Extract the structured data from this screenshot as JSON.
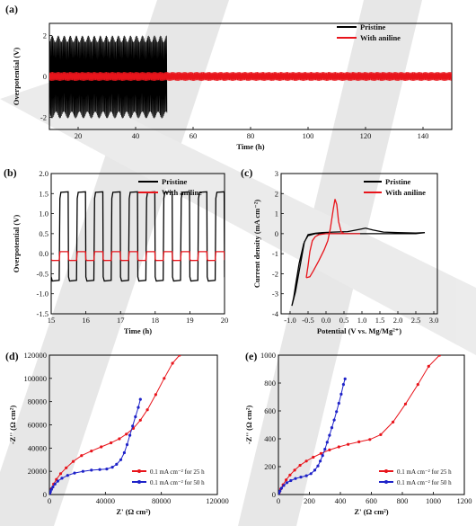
{
  "figure": {
    "panel_letters": [
      "(a)",
      "(b)",
      "(c)",
      "(d)",
      "(e)"
    ],
    "colors": {
      "pristine": "#000000",
      "with_aniline": "#e8141b",
      "eis_25h": "#e8141b",
      "eis_50h": "#1e22c8",
      "watermark": "#c8c8c8"
    }
  },
  "chart_data": [
    {
      "panel": "(a)",
      "type": "line",
      "xlabel": "Time (h)",
      "ylabel": "Overpotential (V)",
      "xlim": [
        10,
        150
      ],
      "ylim": [
        -2.6,
        2.6
      ],
      "xticks": [
        20,
        40,
        60,
        80,
        100,
        120,
        140
      ],
      "yticks": [
        -2,
        0,
        2
      ],
      "legend_position": "top-right",
      "series": [
        {
          "name": "Pristine",
          "color": "#000000",
          "cycling_end_h": 51,
          "envelope": {
            "upper": 2.0,
            "lower": -2.05
          },
          "dense_oscillation": true
        },
        {
          "name": "With aniline",
          "color": "#e8141b",
          "cycling_end_h": 150,
          "envelope": {
            "upper": 0.22,
            "lower": -0.22
          },
          "dense_oscillation": true
        }
      ]
    },
    {
      "panel": "(b)",
      "type": "line",
      "xlabel": "Time (h)",
      "ylabel": "Overpotential (V)",
      "xlim": [
        15,
        20
      ],
      "ylim": [
        -1.5,
        2.0
      ],
      "xticks": [
        15,
        16,
        17,
        18,
        19,
        20
      ],
      "yticks": [
        -1.5,
        -1.0,
        -0.5,
        0.0,
        0.5,
        1.0,
        1.5,
        2.0
      ],
      "legend_position": "top-right",
      "series": [
        {
          "name": "Pristine",
          "color": "#000000",
          "period_h": 0.5,
          "plating_V": -0.68,
          "stripping_V": 1.53
        },
        {
          "name": "With aniline",
          "color": "#e8141b",
          "period_h": 0.5,
          "plating_V": -0.17,
          "stripping_V": 0.05
        }
      ]
    },
    {
      "panel": "(c)",
      "type": "line",
      "xlabel": "Potential (V vs. Mg/Mg²⁺)",
      "ylabel": "Current density (mA cm⁻²)",
      "xlim": [
        -1.25,
        3.1
      ],
      "ylim": [
        -4,
        3
      ],
      "xticks": [
        -1.0,
        -0.5,
        0.0,
        0.5,
        1.0,
        1.5,
        2.0,
        2.5,
        3.0
      ],
      "yticks": [
        -4,
        -3,
        -2,
        -1,
        0,
        1,
        2,
        3
      ],
      "legend_position": "top-right",
      "series": [
        {
          "name": "Pristine",
          "color": "#000000",
          "x": [
            -0.95,
            -0.9,
            -0.85,
            -0.75,
            -0.62,
            -0.5,
            -0.3,
            -0.1,
            0.2,
            0.6,
            0.9,
            1.1,
            1.3,
            1.6,
            2.0,
            2.5,
            2.75,
            2.5,
            2.0,
            1.5,
            1.0,
            0.5,
            0.0,
            -0.3,
            -0.5,
            -0.6,
            -0.68,
            -0.76,
            -0.85,
            -0.95
          ],
          "y": [
            -3.6,
            -3.2,
            -2.6,
            -1.5,
            -0.5,
            -0.05,
            0.02,
            0.05,
            0.08,
            0.1,
            0.2,
            0.27,
            0.18,
            0.08,
            0.05,
            0.03,
            0.05,
            0.0,
            0.0,
            0.0,
            0.0,
            0.0,
            0.0,
            0.0,
            -0.1,
            -0.4,
            -1.2,
            -2.0,
            -2.9,
            -3.6
          ]
        },
        {
          "name": "With aniline",
          "color": "#e8141b",
          "x": [
            -0.55,
            -0.45,
            -0.35,
            -0.2,
            -0.05,
            0.05,
            0.12,
            0.2,
            0.25,
            0.3,
            0.35,
            0.42,
            0.5,
            0.62,
            0.8,
            0.95,
            0.8,
            0.5,
            0.2,
            0.0,
            -0.2,
            -0.3,
            -0.38,
            -0.45,
            -0.5,
            -0.55
          ],
          "y": [
            -2.2,
            -2.15,
            -1.85,
            -1.35,
            -0.8,
            -0.35,
            0.25,
            1.2,
            1.72,
            1.45,
            0.6,
            0.1,
            0.0,
            0.0,
            0.0,
            0.0,
            0.0,
            0.0,
            0.0,
            0.0,
            -0.05,
            -0.15,
            -0.35,
            -0.9,
            -1.6,
            -2.2
          ]
        }
      ]
    },
    {
      "panel": "(d)",
      "type": "scatter",
      "xlabel": "Z' (Ω cm²)",
      "ylabel": "-Z'' (Ω cm²)",
      "xlim": [
        0,
        120000
      ],
      "ylim": [
        0,
        120000
      ],
      "xticks": [
        0,
        40000,
        80000,
        120000
      ],
      "yticks": [
        0,
        20000,
        40000,
        60000,
        80000,
        100000,
        120000
      ],
      "legend_position": "bottom-right",
      "series": [
        {
          "name": "0.1 mA cm⁻² for 25 h",
          "color": "#e8141b",
          "x": [
            500,
            1500,
            3000,
            5000,
            8000,
            12000,
            17000,
            23000,
            30000,
            37000,
            44000,
            50000,
            55000,
            60000,
            65000,
            70000,
            76000,
            82000,
            88000,
            93000
          ],
          "y": [
            2000,
            5000,
            9000,
            13000,
            18000,
            23000,
            28500,
            33500,
            37500,
            41000,
            44500,
            48000,
            52000,
            57000,
            64000,
            73000,
            86000,
            100000,
            113000,
            120000
          ]
        },
        {
          "name": "0.1 mA cm⁻² for 50 h",
          "color": "#1e22c8",
          "x": [
            300,
            800,
            1500,
            2500,
            4000,
            6000,
            9000,
            13000,
            18000,
            24000,
            30000,
            36000,
            41000,
            45000,
            48000,
            51000,
            53500,
            55500,
            57500,
            59500,
            61500,
            63500,
            65000
          ],
          "y": [
            1000,
            2500,
            4500,
            6500,
            9000,
            11500,
            14000,
            16500,
            18500,
            20000,
            21000,
            21500,
            22000,
            23500,
            26000,
            30000,
            36000,
            43000,
            51000,
            59000,
            67000,
            75000,
            82000
          ]
        }
      ]
    },
    {
      "panel": "(e)",
      "type": "scatter",
      "xlabel": "Z' (Ω cm²)",
      "ylabel": "-Z'' (Ω cm²)",
      "xlim": [
        0,
        1200
      ],
      "ylim": [
        0,
        1000
      ],
      "xticks": [
        0,
        200,
        400,
        600,
        800,
        1000,
        1200
      ],
      "yticks": [
        0,
        200,
        400,
        600,
        800,
        1000
      ],
      "legend_position": "bottom-right",
      "series": [
        {
          "name": "0.1 mA cm⁻² for 25 h",
          "color": "#e8141b",
          "x": [
            5,
            15,
            30,
            50,
            75,
            105,
            140,
            180,
            225,
            275,
            330,
            390,
            450,
            520,
            590,
            660,
            740,
            820,
            900,
            970,
            1040
          ],
          "y": [
            15,
            40,
            70,
            105,
            140,
            175,
            210,
            240,
            268,
            295,
            320,
            342,
            360,
            378,
            395,
            430,
            520,
            650,
            790,
            920,
            1000
          ]
        },
        {
          "name": "0.1 mA cm⁻² for 50 h",
          "color": "#1e22c8",
          "x": [
            3,
            10,
            20,
            35,
            55,
            80,
            110,
            145,
            180,
            210,
            235,
            255,
            270,
            285,
            300,
            315,
            330,
            345,
            360,
            375,
            390,
            405,
            420,
            430
          ],
          "y": [
            10,
            25,
            45,
            65,
            85,
            100,
            115,
            125,
            135,
            150,
            175,
            205,
            240,
            280,
            325,
            375,
            425,
            480,
            535,
            595,
            655,
            720,
            790,
            830
          ]
        }
      ]
    }
  ]
}
